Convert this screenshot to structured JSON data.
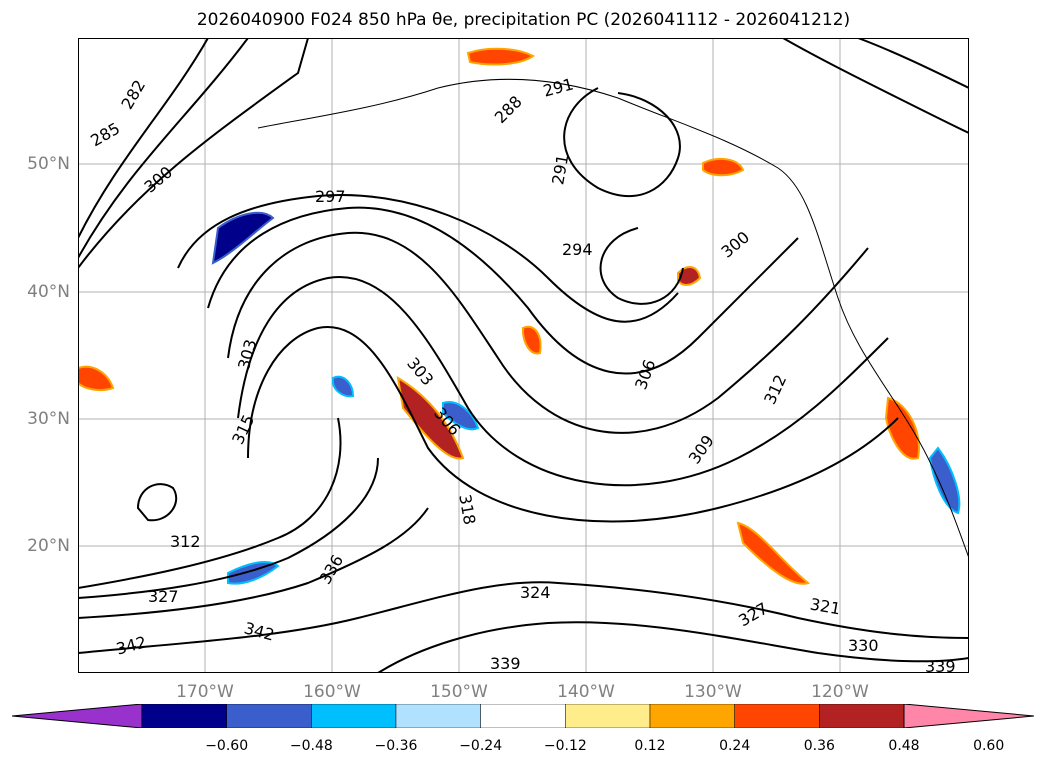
{
  "title": "2026040900 F024 850 hPa θe, precipitation PC (2026041112 - 2026041212)",
  "lat_labels": [
    "50°N",
    "40°N",
    "30°N",
    "20°N"
  ],
  "lon_labels": [
    "170°W",
    "160°W",
    "150°W",
    "140°W",
    "130°W",
    "120°W"
  ],
  "contour_labels": [
    "282",
    "285",
    "288",
    "291",
    "291",
    "294",
    "297",
    "300",
    "300",
    "303",
    "303",
    "306",
    "306",
    "309",
    "312",
    "312",
    "315",
    "318",
    "321",
    "324",
    "327",
    "327",
    "330",
    "336",
    "339",
    "339",
    "342",
    "342"
  ],
  "colorbar": {
    "ticks": [
      "−0.60",
      "−0.48",
      "−0.36",
      "−0.24",
      "−0.12",
      "0.12",
      "0.24",
      "0.36",
      "0.48",
      "0.60"
    ],
    "colors": [
      "#9932cc",
      "#00008b",
      "#3a5fcd",
      "#00bfff",
      "#b0e2ff",
      "#ffffff",
      "#ffec8b",
      "#ffa500",
      "#ff4500",
      "#b22222",
      "#ff86a8"
    ]
  }
}
